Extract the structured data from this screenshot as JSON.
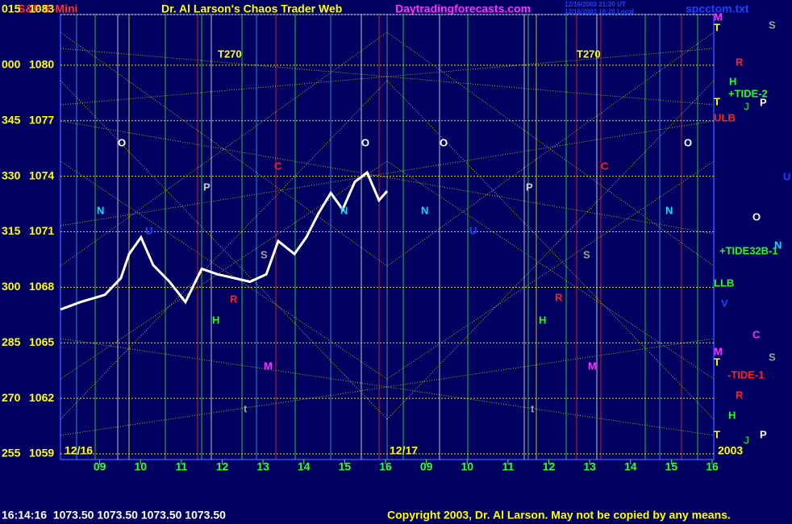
{
  "chart_data": {
    "type": "line",
    "title": "S&P E-Mini",
    "site_title": "Dr. Al Larson's Chaos Trader Web",
    "site_url": "Daytradingforecasts.com",
    "timestamps": [
      "12/16/2003 21:20 UT",
      "12/16/2003 16:20 Local"
    ],
    "file_name": "spcctom.txt",
    "dates": [
      "12/16",
      "12/17",
      "2003"
    ],
    "footer_quote": "16:14:16  1073.50 1073.50 1073.50 1073.50",
    "copyright": "Copyright 2003, Dr. Al Larson. May not be copied by any means.",
    "color": "#ffffff",
    "x": [
      0.04,
      0.53,
      1.13,
      1.52,
      1.72,
      2.01,
      2.31,
      2.71,
      3.1,
      3.5,
      3.89,
      4.29,
      4.68,
      5.08,
      5.37,
      5.77,
      6.06,
      6.36,
      6.66,
      6.95,
      7.25,
      7.55,
      7.84,
      8.04
    ],
    "values": [
      1066.8,
      1067.2,
      1067.6,
      1068.5,
      1069.8,
      1070.7,
      1069.2,
      1068.3,
      1067.2,
      1069.0,
      1068.7,
      1068.5,
      1068.3,
      1068.7,
      1070.5,
      1069.8,
      1070.7,
      1072.0,
      1073.1,
      1072.2,
      1073.7,
      1074.2,
      1072.7,
      1073.2
    ],
    "xlim": [
      0,
      16
    ],
    "xticks": [
      {
        "value": 1,
        "label": "09"
      },
      {
        "value": 2,
        "label": "10"
      },
      {
        "value": 3,
        "label": "11"
      },
      {
        "value": 4,
        "label": "12"
      },
      {
        "value": 5,
        "label": "13"
      },
      {
        "value": 6,
        "label": "14"
      },
      {
        "value": 7,
        "label": "15"
      },
      {
        "value": 8,
        "label": "16"
      },
      {
        "value": 9,
        "label": "09"
      },
      {
        "value": 10,
        "label": "10"
      },
      {
        "value": 11,
        "label": "11"
      },
      {
        "value": 12,
        "label": "12"
      },
      {
        "value": 13,
        "label": "13"
      },
      {
        "value": 14,
        "label": "14"
      },
      {
        "value": 15,
        "label": "15"
      },
      {
        "value": 16,
        "label": "16"
      }
    ],
    "ylim": [
      1059,
      1083
    ],
    "yticks": [
      1083,
      1080,
      1077,
      1074,
      1071,
      1068,
      1065,
      1062,
      1059
    ],
    "y_degree_labels": [
      "015",
      "000",
      "345",
      "330",
      "315",
      "300",
      "285",
      "270",
      "255"
    ],
    "grid": true,
    "annotations": [
      {
        "text": "T270",
        "color": "#ffff00"
      },
      {
        "text": "T270",
        "color": "#ffff00"
      },
      {
        "text": "O",
        "color": "#ffffff"
      },
      {
        "text": "O",
        "color": "#ffffff"
      },
      {
        "text": "O",
        "color": "#ffffff"
      },
      {
        "text": "O",
        "color": "#ffffff"
      },
      {
        "text": "N",
        "color": "#00e0ff"
      },
      {
        "text": "N",
        "color": "#00e0ff"
      },
      {
        "text": "N",
        "color": "#00e0ff"
      },
      {
        "text": "N",
        "color": "#00e0ff"
      },
      {
        "text": "P",
        "color": "#d0d0d0"
      },
      {
        "text": "P",
        "color": "#d0d0d0"
      },
      {
        "text": "C",
        "color": "#ff2020"
      },
      {
        "text": "C",
        "color": "#ff2020"
      },
      {
        "text": "U",
        "color": "#2040ff"
      },
      {
        "text": "U",
        "color": "#2040ff"
      },
      {
        "text": "S",
        "color": "#a0a0a0"
      },
      {
        "text": "S",
        "color": "#a0a0a0"
      },
      {
        "text": "R",
        "color": "#ff2020"
      },
      {
        "text": "R",
        "color": "#ff2020"
      },
      {
        "text": "H",
        "color": "#20ff20"
      },
      {
        "text": "H",
        "color": "#20ff20"
      },
      {
        "text": "M",
        "color": "#ff30ff"
      },
      {
        "text": "M",
        "color": "#ff30ff"
      },
      {
        "text": "t",
        "color": "#a0a0a0"
      },
      {
        "text": "t",
        "color": "#a0a0a0"
      }
    ],
    "side_labels": [
      {
        "text": "M",
        "color": "#ff30ff"
      },
      {
        "text": "T",
        "color": "#ffff00"
      },
      {
        "text": "S",
        "color": "#a0a0a0"
      },
      {
        "text": "R",
        "color": "#ff2020"
      },
      {
        "text": "H",
        "color": "#20ff20"
      },
      {
        "text": "+TIDE-2",
        "color": "#20ff20"
      },
      {
        "text": "J",
        "color": "#20c020"
      },
      {
        "text": "T",
        "color": "#ffff00"
      },
      {
        "text": "P",
        "color": "#ffffff"
      },
      {
        "text": "ULB",
        "color": "#ff2020"
      },
      {
        "text": "U",
        "color": "#2040ff"
      },
      {
        "text": "O",
        "color": "#ffffff"
      },
      {
        "text": "N",
        "color": "#00e0ff"
      },
      {
        "text": "+TIDE32B-1",
        "color": "#20ff20"
      },
      {
        "text": "LLB",
        "color": "#20ff20"
      },
      {
        "text": "V",
        "color": "#2040ff"
      },
      {
        "text": "C",
        "color": "#ff30ff"
      },
      {
        "text": "M",
        "color": "#ff30ff"
      },
      {
        "text": "S",
        "color": "#a0a0a0"
      },
      {
        "text": "T",
        "color": "#ffff00"
      },
      {
        "text": "-TIDE-1",
        "color": "#ff2020"
      },
      {
        "text": "R",
        "color": "#ff2020"
      },
      {
        "text": "H",
        "color": "#20ff20"
      },
      {
        "text": "T",
        "color": "#ffff00"
      },
      {
        "text": "J",
        "color": "#20c020"
      },
      {
        "text": "P",
        "color": "#ffffff"
      }
    ]
  }
}
